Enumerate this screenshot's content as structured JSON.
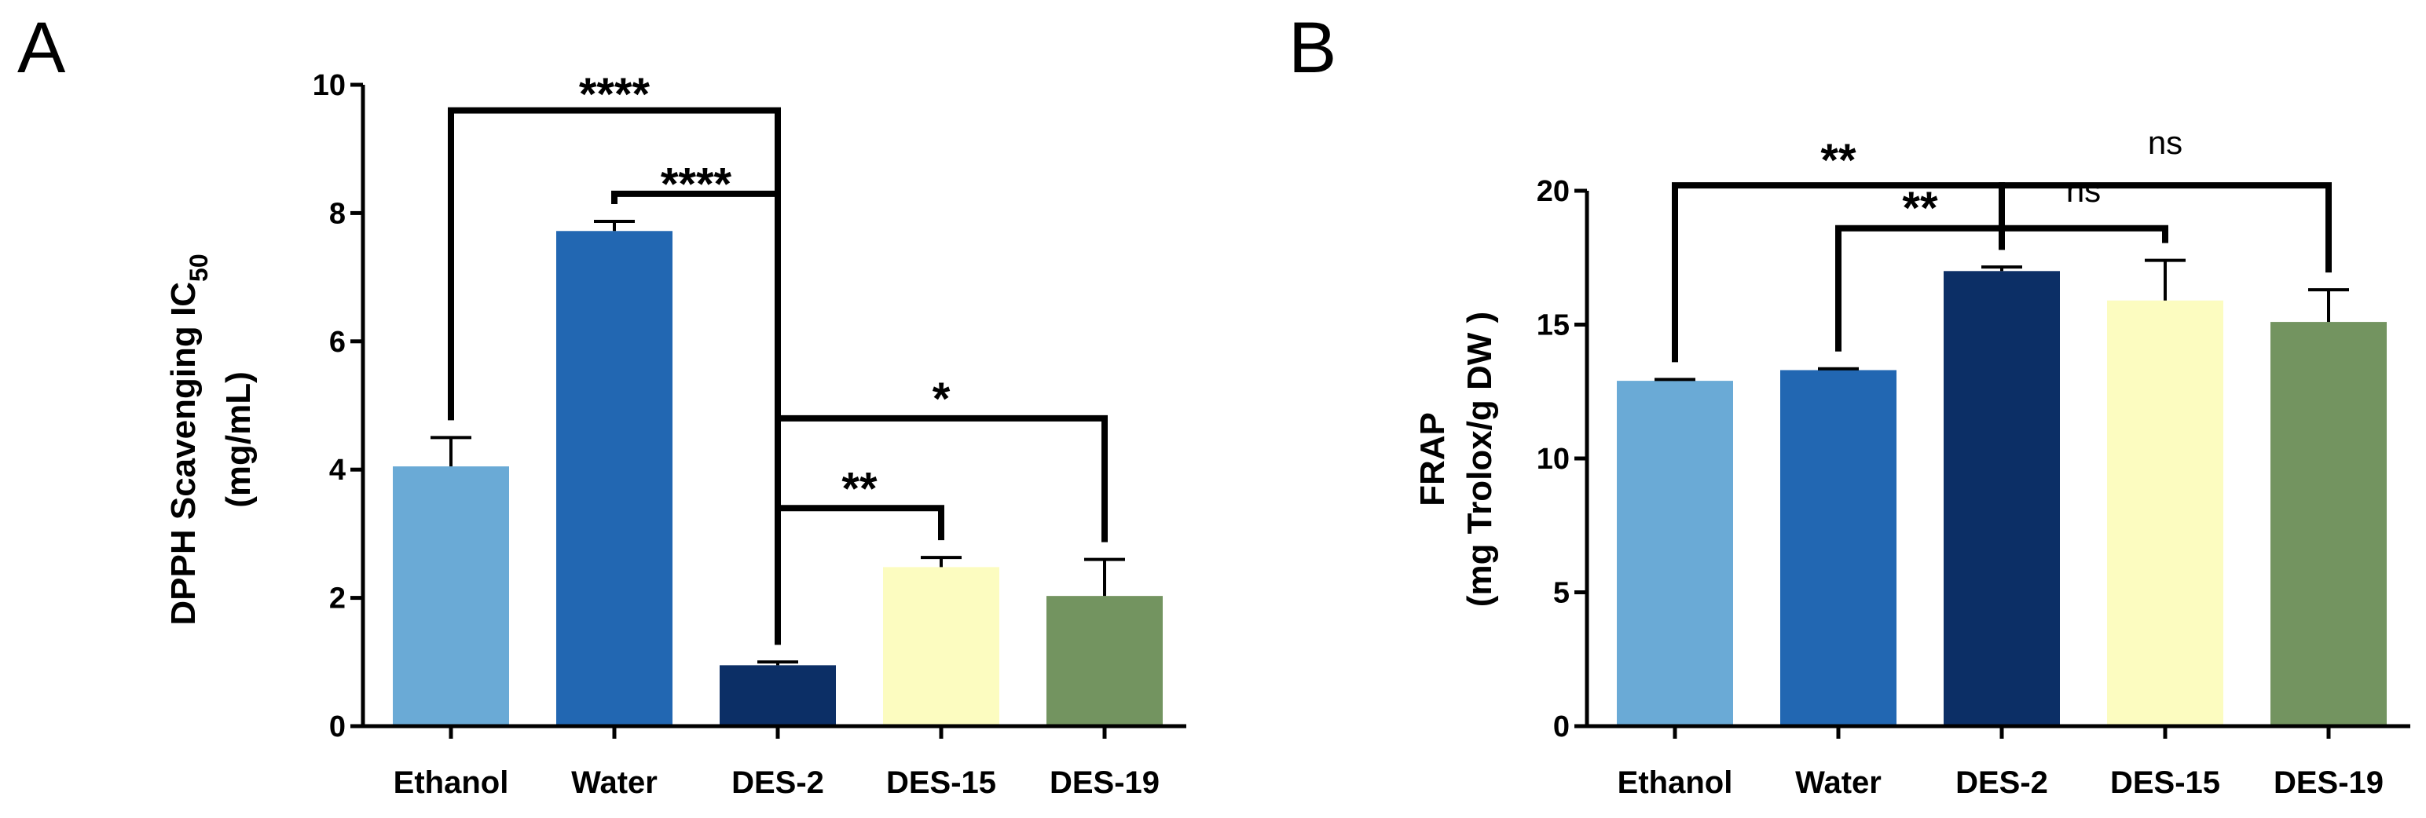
{
  "chart_data": [
    {
      "panel": "A",
      "type": "bar",
      "categories": [
        "Ethanol",
        "Water",
        "DES-2",
        "DES-15",
        "DES-19"
      ],
      "values": [
        4.05,
        7.72,
        0.95,
        2.48,
        2.03
      ],
      "errors": [
        0.45,
        0.15,
        0.05,
        0.15,
        0.57
      ],
      "colors": [
        "#6aaad6",
        "#2267b2",
        "#0c2f66",
        "#fcfcc0",
        "#739460"
      ],
      "ylabel_line1": "DPPH Scavenging IC",
      "ylabel_sub": "50",
      "ylabel_line2": "(mg/mL)",
      "ylim": [
        0,
        10
      ],
      "yticks": [
        "0",
        "2",
        "4",
        "6",
        "8",
        "10"
      ],
      "tick_values": [
        0,
        2,
        4,
        6,
        8,
        10
      ],
      "significance": [
        {
          "from": 0,
          "to": 2,
          "label": "****",
          "y": 9.6,
          "label_y": 10.0
        },
        {
          "from": 1,
          "to": 2,
          "label": "****",
          "y": 8.3,
          "label_y": 8.6
        },
        {
          "from": 2,
          "to": 3,
          "label": "**",
          "y": 3.4,
          "label_y": 3.85
        },
        {
          "from": 2,
          "to": 4,
          "label": "*",
          "y": 4.8,
          "label_y": 5.25
        }
      ]
    },
    {
      "panel": "B",
      "type": "bar",
      "categories": [
        "Ethanol",
        "Water",
        "DES-2",
        "DES-15",
        "DES-19"
      ],
      "values": [
        12.9,
        13.3,
        17.0,
        15.9,
        15.1
      ],
      "errors": [
        0.05,
        0.05,
        0.15,
        1.5,
        1.2
      ],
      "colors": [
        "#6aaad6",
        "#2267b2",
        "#0c2f66",
        "#fcfcc0",
        "#739460"
      ],
      "ylabel_line1": "FRAP",
      "ylabel_line2": "(mg Trolox/g DW )",
      "ylim": [
        0,
        20
      ],
      "yticks": [
        "0",
        "5",
        "10",
        "15",
        "20"
      ],
      "tick_values": [
        0,
        5,
        10,
        15,
        20
      ],
      "significance": [
        {
          "from": 0,
          "to": 2,
          "label": "**",
          "y": 20.2,
          "label_y": 21.5
        },
        {
          "from": 1,
          "to": 2,
          "label": "**",
          "y": 18.6,
          "label_y": 19.7
        },
        {
          "from": 2,
          "to": 3,
          "label": "ns",
          "y": 18.6,
          "label_y": 19.7
        },
        {
          "from": 2,
          "to": 4,
          "label": "ns",
          "y": 20.2,
          "label_y": 21.5
        }
      ]
    }
  ]
}
